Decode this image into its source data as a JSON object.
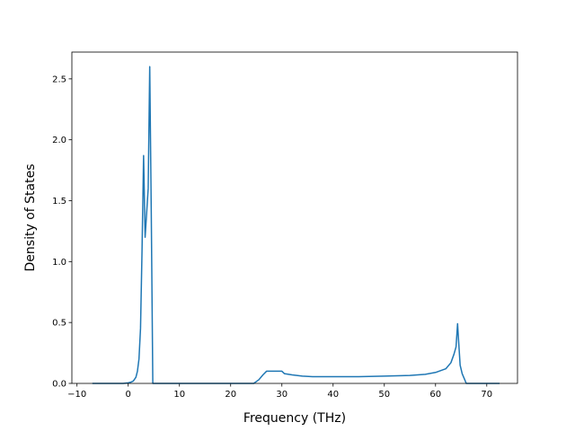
{
  "chart_data": {
    "type": "line",
    "title": "",
    "xlabel": "Frequency (THz)",
    "ylabel": "Density of States",
    "xlim": [
      -11.0,
      76.0
    ],
    "ylim": [
      0.0,
      2.72
    ],
    "xticks": [
      -10,
      0,
      10,
      20,
      30,
      40,
      50,
      60,
      70
    ],
    "yticks": [
      0.0,
      0.5,
      1.0,
      1.5,
      2.0,
      2.5
    ],
    "xtick_labels": [
      "−10",
      "0",
      "10",
      "20",
      "30",
      "40",
      "50",
      "60",
      "70"
    ],
    "ytick_labels": [
      "0.0",
      "0.5",
      "1.0",
      "1.5",
      "2.0",
      "2.5"
    ],
    "grid": false,
    "legend": "none",
    "series": [
      {
        "color": "#1f77b4",
        "x": [
          -7.0,
          -1.0,
          0.0,
          0.5,
          1.0,
          1.5,
          1.8,
          2.1,
          2.4,
          2.7,
          3.0,
          3.3,
          3.6,
          3.9,
          4.2,
          4.5,
          4.8,
          5.0,
          24.5,
          25.5,
          26.3,
          27.0,
          28.0,
          29.0,
          30.0,
          30.5,
          32.0,
          34.0,
          36.0,
          40.0,
          45.0,
          50.0,
          55.0,
          58.0,
          60.0,
          62.0,
          63.0,
          63.6,
          64.0,
          64.3,
          64.5,
          64.8,
          65.2,
          65.6,
          66.0,
          72.5
        ],
        "y": [
          0.0,
          0.0,
          0.005,
          0.01,
          0.02,
          0.05,
          0.1,
          0.2,
          0.45,
          1.1,
          1.87,
          1.2,
          1.4,
          1.6,
          2.6,
          1.4,
          0.0,
          0.0,
          0.0,
          0.03,
          0.07,
          0.1,
          0.1,
          0.1,
          0.1,
          0.08,
          0.07,
          0.06,
          0.055,
          0.055,
          0.055,
          0.06,
          0.065,
          0.075,
          0.09,
          0.12,
          0.17,
          0.24,
          0.3,
          0.49,
          0.35,
          0.15,
          0.08,
          0.04,
          0.0,
          0.0
        ]
      }
    ]
  }
}
